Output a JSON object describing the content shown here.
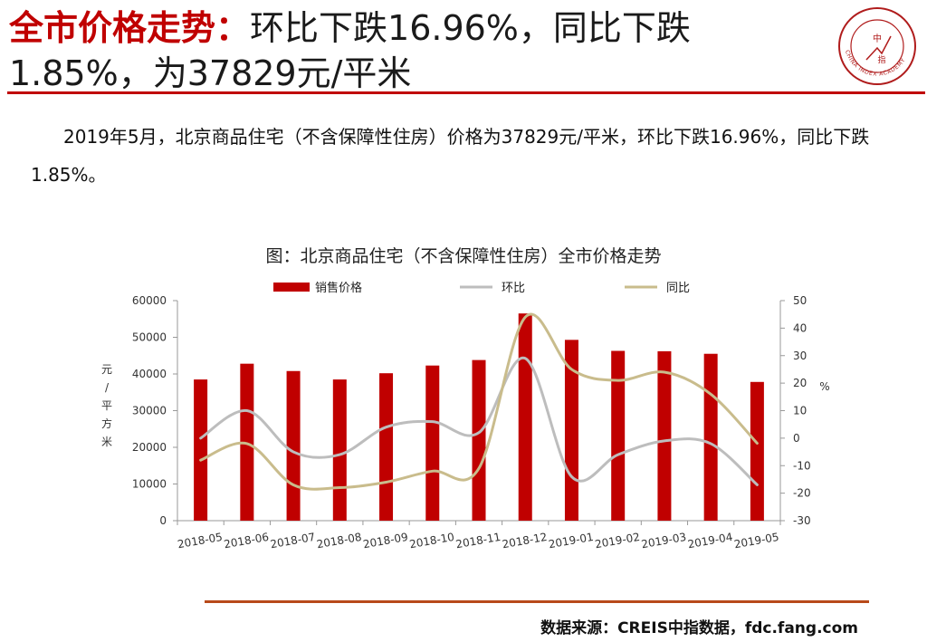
{
  "header": {
    "title_highlight": "全市价格走势：",
    "title_rest": "环比下跌16.96%，同比下跌1.85%，为37829元/平米"
  },
  "logo": {
    "center_top": "中",
    "center_bottom": "指",
    "ring_text": "CHINA INDEX ACADEMY",
    "color": "#b01c1c"
  },
  "body": {
    "paragraph": "2019年5月，北京商品住宅（不含保障性住房）价格为37829元/平米，环比下跌16.96%，同比下跌1.85%。"
  },
  "chart_data": {
    "type": "bar",
    "title": "图：北京商品住宅（不含保障性住房）全市价格走势",
    "categories": [
      "2018-05",
      "2018-06",
      "2018-07",
      "2018-08",
      "2018-09",
      "2018-10",
      "2018-11",
      "2018-12",
      "2019-01",
      "2019-02",
      "2019-03",
      "2019-04",
      "2019-05"
    ],
    "series": [
      {
        "name": "销售价格",
        "kind": "bar",
        "axis": "left",
        "color": "#c00000",
        "values": [
          38500,
          42800,
          40800,
          38500,
          40200,
          42300,
          43800,
          56500,
          49300,
          46300,
          46200,
          45500,
          37829
        ]
      },
      {
        "name": "环比",
        "kind": "line",
        "axis": "right",
        "color": "#bdbdbd",
        "values": [
          0,
          10,
          -5,
          -6,
          4,
          6,
          2,
          29,
          -14,
          -6,
          -1,
          -2,
          -16.96
        ]
      },
      {
        "name": "同比",
        "kind": "line",
        "axis": "right",
        "color": "#c9bc8c",
        "values": [
          -8,
          -2,
          -17,
          -18,
          -16,
          -12,
          -11,
          44,
          25,
          21,
          24,
          16,
          -1.85
        ]
      }
    ],
    "ylabel": "元/平方米",
    "ylim": [
      0,
      60000
    ],
    "yticks": [
      "0",
      "10000",
      "20000",
      "30000",
      "40000",
      "50000",
      "60000"
    ],
    "y2label": "%",
    "y2lim": [
      -30,
      50
    ],
    "y2ticks": [
      "-30",
      "-20",
      "-10",
      "0",
      "10",
      "20",
      "30",
      "40",
      "50"
    ],
    "grid": false,
    "legend": "top"
  },
  "footer": {
    "source": "数据来源：CREIS中指数据，fdc.fang.com"
  }
}
